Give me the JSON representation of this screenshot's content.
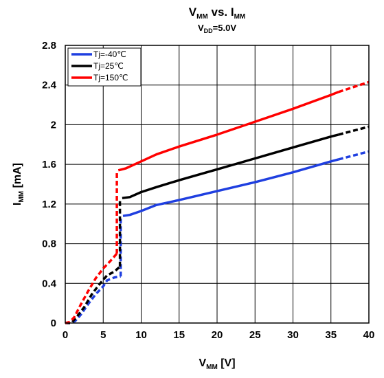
{
  "chart_data": {
    "type": "line",
    "title": {
      "main": "V",
      "main_sub": "MM",
      "mid": " vs. I",
      "end_sub": "MM"
    },
    "subtitle": {
      "pre": "V",
      "sub": "DD",
      "post": "=5.0V"
    },
    "xlabel": {
      "pre": "V",
      "sub": "MM",
      "post": " [V]"
    },
    "ylabel": {
      "pre": "I",
      "sub": "MM",
      "post": " [mA]"
    },
    "xlim": [
      0,
      40
    ],
    "ylim": [
      0,
      2.8
    ],
    "xticks": [
      "0",
      "5",
      "10",
      "15",
      "20",
      "25",
      "30",
      "35",
      "40"
    ],
    "yticks": [
      "0",
      "0.4",
      "0.8",
      "1.2",
      "1.6",
      "2",
      "2.4",
      "2.8"
    ],
    "grid": true,
    "legend_position": "top-left",
    "series": [
      {
        "name": "Tj=-40℃",
        "color": "#1f3fe0",
        "segments": [
          {
            "style": "dashed",
            "points": [
              [
                0,
                0
              ],
              [
                0.7,
                0
              ],
              [
                1.3,
                0.02
              ],
              [
                2,
                0.08
              ],
              [
                3,
                0.19
              ],
              [
                4,
                0.29
              ],
              [
                5,
                0.37
              ],
              [
                5.5,
                0.43
              ],
              [
                6.5,
                0.46
              ],
              [
                7.3,
                0.47
              ]
            ]
          },
          {
            "style": "dashed",
            "points": [
              [
                7.3,
                0.47
              ],
              [
                7.3,
                1.08
              ]
            ]
          },
          {
            "style": "solid",
            "points": [
              [
                7.6,
                1.08
              ],
              [
                8.5,
                1.09
              ],
              [
                10,
                1.13
              ],
              [
                12,
                1.19
              ],
              [
                15,
                1.24
              ],
              [
                20,
                1.33
              ],
              [
                25,
                1.42
              ],
              [
                30,
                1.52
              ],
              [
                35,
                1.63
              ],
              [
                36,
                1.65
              ]
            ]
          },
          {
            "style": "dashed",
            "points": [
              [
                36,
                1.65
              ],
              [
                38,
                1.69
              ],
              [
                40,
                1.73
              ]
            ]
          }
        ]
      },
      {
        "name": "Tj=25℃",
        "color": "#000000",
        "segments": [
          {
            "style": "dashed",
            "points": [
              [
                0,
                0
              ],
              [
                0.8,
                0
              ],
              [
                1.5,
                0.06
              ],
              [
                2.5,
                0.16
              ],
              [
                3.5,
                0.29
              ],
              [
                4.5,
                0.39
              ],
              [
                5.5,
                0.48
              ],
              [
                6.5,
                0.52
              ],
              [
                7.2,
                0.57
              ]
            ]
          },
          {
            "style": "dashed",
            "points": [
              [
                7.2,
                0.57
              ],
              [
                7.2,
                1.25
              ]
            ]
          },
          {
            "style": "solid",
            "points": [
              [
                7.5,
                1.26
              ],
              [
                8.5,
                1.27
              ],
              [
                10,
                1.32
              ],
              [
                12,
                1.37
              ],
              [
                15,
                1.44
              ],
              [
                20,
                1.55
              ],
              [
                25,
                1.66
              ],
              [
                30,
                1.77
              ],
              [
                35,
                1.88
              ],
              [
                36,
                1.9
              ]
            ]
          },
          {
            "style": "dashed",
            "points": [
              [
                36,
                1.9
              ],
              [
                38,
                1.94
              ],
              [
                40,
                1.98
              ]
            ]
          }
        ]
      },
      {
        "name": "Tj=150℃",
        "color": "#ff0000",
        "segments": [
          {
            "style": "dashed",
            "points": [
              [
                0,
                0
              ],
              [
                0.6,
                0.01
              ],
              [
                1.2,
                0.06
              ],
              [
                2,
                0.18
              ],
              [
                3,
                0.32
              ],
              [
                4,
                0.45
              ],
              [
                5,
                0.55
              ],
              [
                6,
                0.63
              ],
              [
                6.8,
                0.7
              ]
            ]
          },
          {
            "style": "dashed",
            "points": [
              [
                6.8,
                0.7
              ],
              [
                6.8,
                1.53
              ]
            ]
          },
          {
            "style": "solid",
            "points": [
              [
                7,
                1.54
              ],
              [
                8,
                1.56
              ],
              [
                10,
                1.63
              ],
              [
                12,
                1.7
              ],
              [
                15,
                1.78
              ],
              [
                20,
                1.9
              ],
              [
                25,
                2.03
              ],
              [
                30,
                2.16
              ],
              [
                35,
                2.3
              ],
              [
                36,
                2.33
              ]
            ]
          },
          {
            "style": "dashed",
            "points": [
              [
                36,
                2.33
              ],
              [
                38,
                2.38
              ],
              [
                40,
                2.43
              ]
            ]
          }
        ]
      }
    ]
  }
}
